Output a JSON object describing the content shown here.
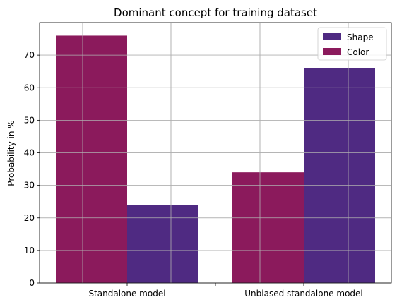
{
  "chart_data": {
    "type": "bar",
    "title": "Dominant concept for training dataset",
    "xlabel": "",
    "ylabel": "Probability in %",
    "ylim": [
      0,
      80
    ],
    "yticks": [
      0,
      10,
      20,
      30,
      40,
      50,
      60,
      70
    ],
    "categories": [
      "Standalone model",
      "Unbiased standalone model"
    ],
    "series": [
      {
        "name": "Shape",
        "color": "#4f2a82",
        "values": [
          24,
          66
        ]
      },
      {
        "name": "Color",
        "color": "#8b1a5c",
        "values": [
          76,
          34
        ]
      }
    ],
    "grid": true,
    "legend_position": "top-right"
  }
}
